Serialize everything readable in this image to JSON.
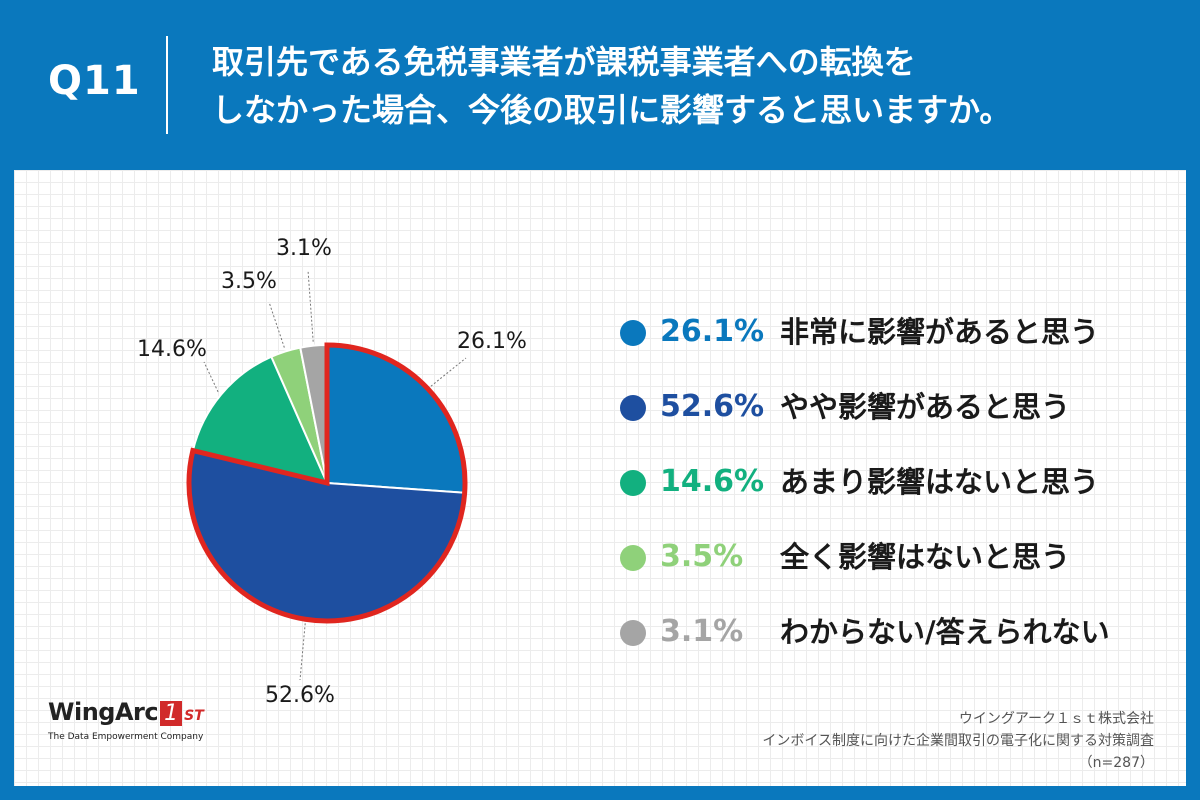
{
  "header": {
    "question_number": "Q11",
    "title_line1": "取引先である免税事業者が課税事業者への転換を",
    "title_line2": "しなかった場合、今後の取引に影響すると思いますか。"
  },
  "chart_data": {
    "type": "pie",
    "slices": [
      {
        "label": "非常に影響があると思う",
        "value": 26.1,
        "display": "26.1%",
        "color": "#0a78bd"
      },
      {
        "label": "やや影響があると思う",
        "value": 52.6,
        "display": "52.6%",
        "color": "#1e4fa0"
      },
      {
        "label": "あまり影響はないと思う",
        "value": 14.6,
        "display": "14.6%",
        "color": "#12b07f"
      },
      {
        "label": "全く影響はないと思う",
        "value": 3.5,
        "display": "3.5%",
        "color": "#8fd17a"
      },
      {
        "label": "わからない/答えられない",
        "value": 3.1,
        "display": "3.1%",
        "color": "#a5a5a5"
      }
    ],
    "highlight_color": "#e0261f",
    "legend_placement": "right"
  },
  "logo": {
    "name_a": "WingArc",
    "name_b": "1",
    "name_c": "ST",
    "tagline": "The Data Empowerment Company"
  },
  "source": {
    "line1": "ウイングアーク１ｓｔ株式会社",
    "line2": "インボイス制度に向けた企業間取引の電子化に関する対策調査",
    "line3": "（n=287）"
  }
}
